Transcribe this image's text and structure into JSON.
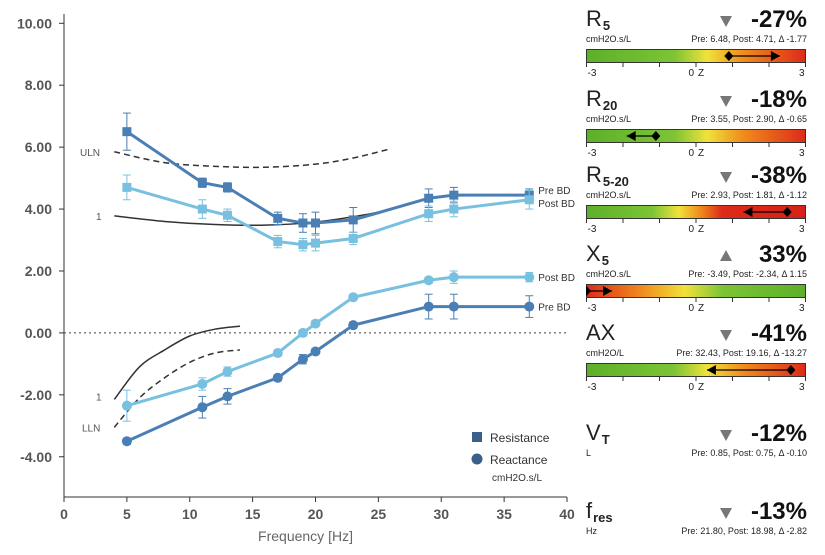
{
  "chart_data": {
    "type": "line",
    "xlabel": "Frequency [Hz]",
    "xlim": [
      0,
      40
    ],
    "ylim": [
      -5.3,
      10.3
    ],
    "x_ticks": [
      "0",
      "5",
      "10",
      "15",
      "20",
      "25",
      "30",
      "35",
      "40"
    ],
    "y_ticks": [
      "10.00",
      "8.00",
      "6.00",
      "4.00",
      "2.00",
      "0.00",
      "-2.00",
      "-4.00"
    ],
    "zero_line": "dotted",
    "reference_labels": {
      "uln": "ULN",
      "lln": "LLN",
      "one_upper": "1",
      "one_lower": "1"
    },
    "reference_curves": [
      {
        "style": "dashed",
        "x": [
          4,
          8,
          12,
          16,
          20,
          23,
          26
        ],
        "y": [
          5.85,
          5.5,
          5.38,
          5.35,
          5.45,
          5.65,
          5.95
        ]
      },
      {
        "style": "solid",
        "x": [
          4,
          8,
          12,
          16,
          20,
          24,
          26
        ],
        "y": [
          3.78,
          3.6,
          3.5,
          3.48,
          3.58,
          3.82,
          4.0
        ]
      },
      {
        "style": "solid",
        "x": [
          4,
          6,
          8,
          10,
          12,
          14
        ],
        "y": [
          -2.15,
          -1.1,
          -0.55,
          -0.1,
          0.12,
          0.22
        ]
      },
      {
        "style": "dashed",
        "x": [
          4,
          6,
          8,
          10,
          12,
          14
        ],
        "y": [
          -3.05,
          -2.1,
          -1.45,
          -0.95,
          -0.65,
          -0.55
        ]
      }
    ],
    "series": [
      {
        "name": "Pre BD",
        "kind": "resistance",
        "color": "#4a7fb5",
        "x": [
          5,
          11,
          13,
          17,
          19,
          20,
          23,
          29,
          31,
          37
        ],
        "y": [
          6.5,
          4.85,
          4.7,
          3.7,
          3.55,
          3.55,
          3.65,
          4.35,
          4.45,
          4.45
        ],
        "err": [
          0.6,
          0.15,
          0.15,
          0.2,
          0.3,
          0.35,
          0.4,
          0.3,
          0.25,
          0.2
        ]
      },
      {
        "name": "Post BD",
        "kind": "resistance",
        "color": "#78c0e0",
        "x": [
          5,
          11,
          13,
          17,
          19,
          20,
          23,
          29,
          31,
          37
        ],
        "y": [
          4.7,
          4.0,
          3.8,
          2.95,
          2.85,
          2.9,
          3.05,
          3.85,
          4.0,
          4.3
        ],
        "err": [
          0.4,
          0.3,
          0.2,
          0.2,
          0.2,
          0.25,
          0.2,
          0.25,
          0.25,
          0.3
        ]
      },
      {
        "name": "Post BD",
        "kind": "reactance",
        "color": "#78c0e0",
        "x": [
          5,
          11,
          13,
          17,
          19,
          20,
          23,
          29,
          31,
          37
        ],
        "y": [
          -2.35,
          -1.65,
          -1.25,
          -0.65,
          0.0,
          0.3,
          1.15,
          1.7,
          1.8,
          1.8
        ],
        "err": [
          0.5,
          0.2,
          0.15,
          0.1,
          0.1,
          0.1,
          0.1,
          0.1,
          0.2,
          0.15
        ]
      },
      {
        "name": "Pre BD",
        "kind": "reactance",
        "color": "#4a7fb5",
        "x": [
          5,
          11,
          13,
          17,
          19,
          20,
          23,
          29,
          31,
          37
        ],
        "y": [
          -3.5,
          -2.4,
          -2.05,
          -1.45,
          -0.85,
          -0.6,
          0.25,
          0.85,
          0.85,
          0.85
        ],
        "err": [
          0.1,
          0.35,
          0.25,
          0.1,
          0.15,
          0.1,
          0.1,
          0.4,
          0.4,
          0.35
        ]
      }
    ],
    "legend": {
      "placement": "bottom-right",
      "items": [
        "Resistance",
        "Reactance"
      ],
      "unit": "cmH2O.s/L"
    }
  },
  "metrics": [
    {
      "name": "R",
      "sub": "5",
      "unit": "cmH2O.s/L",
      "direction": "down",
      "pct": "-27%",
      "stats": "Pre: 6.48, Post: 4.71, Δ -1.77",
      "bar": {
        "gradient": "green-yellow-red",
        "min": -3,
        "max": 3,
        "pre": 0.9,
        "post": 2.3,
        "ticks": [
          "-3",
          "0",
          "Z",
          "3"
        ]
      }
    },
    {
      "name": "R",
      "sub": "20",
      "unit": "cmH2O.s/L",
      "direction": "down",
      "pct": "-18%",
      "stats": "Pre: 3.55, Post: 2.90, Δ -0.65",
      "bar": {
        "gradient": "green-yellow-red",
        "min": -3,
        "max": 3,
        "pre": -1.1,
        "post": -1.9,
        "ticks": [
          "-3",
          "0",
          "Z",
          "3"
        ]
      }
    },
    {
      "name": "R",
      "sub": "5-20",
      "unit": "cmH2O.s/L",
      "direction": "down",
      "pct": "-38%",
      "stats": "Pre: 2.93, Post: 1.81, Δ -1.12",
      "bar": {
        "gradient": "green-yellow-red-steep",
        "min": -3,
        "max": 3,
        "pre": 2.5,
        "post": 1.3,
        "ticks": [
          "-3",
          "0",
          "Z",
          "3"
        ]
      }
    },
    {
      "name": "X",
      "sub": "5",
      "unit": "cmH2O.s/L",
      "direction": "up",
      "pct": "33%",
      "stats": "Pre: -3.49, Post: -2.34, Δ 1.15",
      "bar": {
        "gradient": "red-yellow-green",
        "min": -3,
        "max": 3,
        "pre": -3.6,
        "post": -2.3,
        "ticks": [
          "-3",
          "0",
          "Z",
          "3"
        ]
      }
    },
    {
      "name": "AX",
      "sub": "",
      "unit": "cmH2O/L",
      "direction": "down",
      "pct": "-41%",
      "stats": "Pre: 32.43, Post: 19.16, Δ -13.27",
      "bar": {
        "gradient": "green-yellow-red",
        "min": -3,
        "max": 3,
        "pre": 2.6,
        "post": 0.3,
        "ticks": [
          "-3",
          "0",
          "Z",
          "3"
        ]
      }
    },
    {
      "name": "V",
      "sub": "T",
      "unit": "L",
      "direction": "down",
      "pct": "-12%",
      "stats": "Pre: 0.85, Post: 0.75, Δ -0.10",
      "bar": null
    },
    {
      "name": "f",
      "sub": "res",
      "unit": "Hz",
      "direction": "down",
      "pct": "-13%",
      "stats": "Pre: 21.80, Post: 18.98, Δ -2.82",
      "bar": null
    }
  ]
}
